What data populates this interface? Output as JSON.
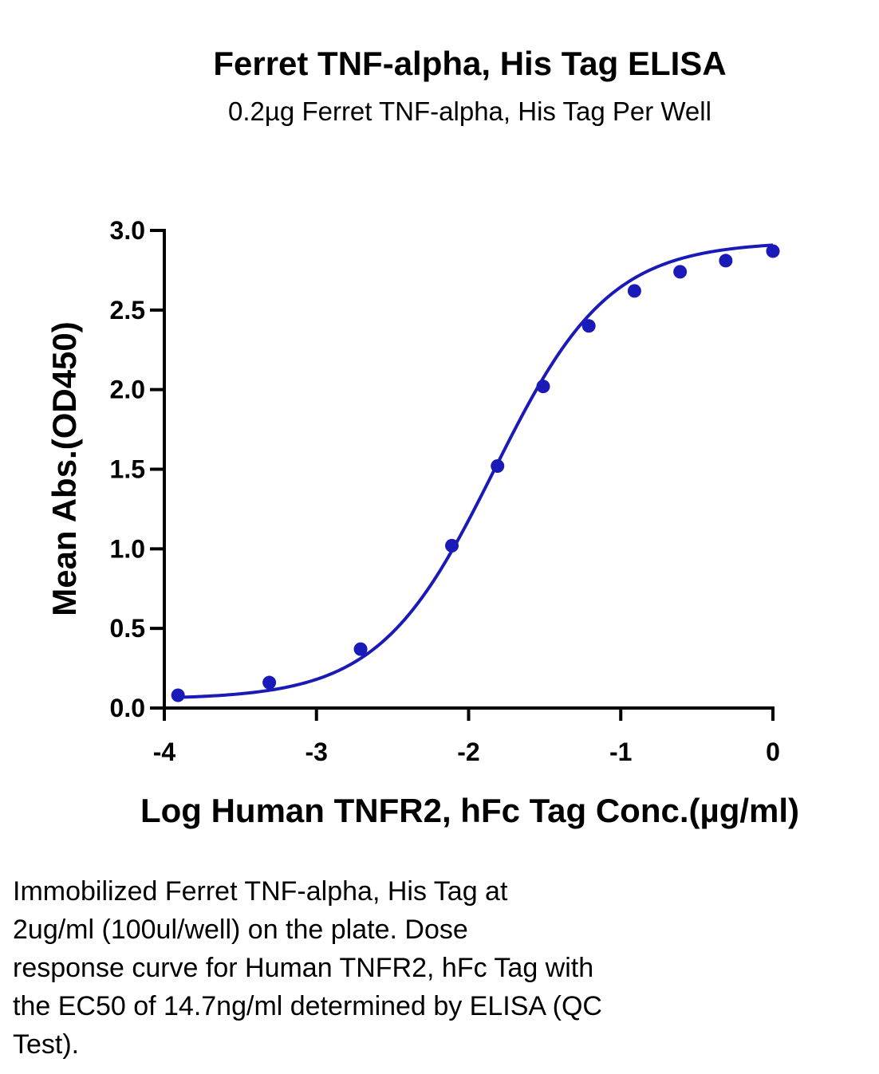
{
  "chart_data": {
    "type": "scatter",
    "title": "Ferret TNF-alpha, His Tag ELISA",
    "subtitle": "0.2µg Ferret TNF-alpha, His Tag Per Well",
    "xlabel": "Log Human TNFR2, hFc Tag Conc.(µg/ml)",
    "ylabel": "Mean Abs.(OD450)",
    "xlim": [
      -4,
      0
    ],
    "ylim": [
      0,
      3
    ],
    "x_ticks": [
      "-4",
      "-3",
      "-2",
      "-1",
      "0"
    ],
    "y_ticks": [
      "0.0",
      "0.5",
      "1.0",
      "1.5",
      "2.0",
      "2.5",
      "3.0"
    ],
    "grid": false,
    "series": [
      {
        "x": [
          -3.91,
          -3.31,
          -2.71,
          -2.11,
          -1.81,
          -1.51,
          -1.21,
          -0.91,
          -0.61,
          -0.31,
          0.0
        ],
        "y": [
          0.08,
          0.16,
          0.37,
          1.02,
          1.52,
          2.02,
          2.4,
          2.62,
          2.74,
          2.81,
          2.87
        ],
        "color": "#1a1ab8",
        "fit": "4PL sigmoid"
      }
    ]
  },
  "caption": {
    "lines": [
      "Immobilized Ferret TNF-alpha, His Tag at",
      "2ug/ml (100ul/well) on the plate. Dose",
      "response curve for Human TNFR2, hFc Tag with",
      "the EC50 of 14.7ng/ml determined by ELISA (QC",
      "Test)."
    ]
  }
}
